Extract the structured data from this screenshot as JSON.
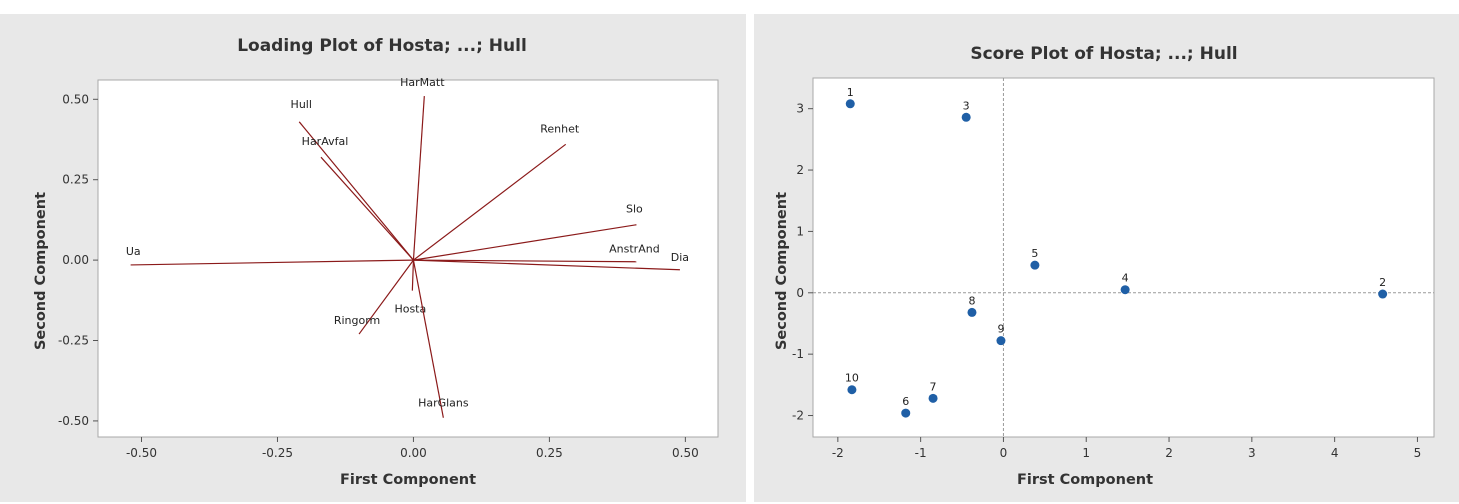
{
  "chart_data": [
    {
      "type": "vector",
      "title": "Loading Plot of Hosta; ...; Hull",
      "xlabel": "First Component",
      "ylabel": "Second Component",
      "xlim": [
        -0.58,
        0.56
      ],
      "ylim": [
        -0.55,
        0.56
      ],
      "xticks": [
        -0.5,
        -0.25,
        0.0,
        0.25,
        0.5
      ],
      "xtick_labels": [
        "-0.50",
        "-0.25",
        "0.00",
        "0.25",
        "0.50"
      ],
      "yticks": [
        -0.5,
        -0.25,
        0.0,
        0.25,
        0.5
      ],
      "ytick_labels": [
        "-0.50",
        "-0.25",
        "0.00",
        "0.25",
        "0.50"
      ],
      "line_color": "#8b1a1a",
      "vectors": [
        {
          "label": "Hosta",
          "x": -0.002,
          "y": -0.095
        },
        {
          "label": "Ua",
          "x": -0.52,
          "y": -0.015
        },
        {
          "label": "Hull",
          "x": -0.21,
          "y": 0.43
        },
        {
          "label": "HarAvfal",
          "x": -0.17,
          "y": 0.32
        },
        {
          "label": "HarMatt",
          "x": 0.02,
          "y": 0.51
        },
        {
          "label": "Renhet",
          "x": 0.28,
          "y": 0.36
        },
        {
          "label": "Slo",
          "x": 0.41,
          "y": 0.11
        },
        {
          "label": "AnstrAnd",
          "x": 0.41,
          "y": -0.005
        },
        {
          "label": "Dia",
          "x": 0.49,
          "y": -0.03
        },
        {
          "label": "Ringorm",
          "x": -0.1,
          "y": -0.23
        },
        {
          "label": "HarGlans",
          "x": 0.055,
          "y": -0.49
        }
      ]
    },
    {
      "type": "scatter",
      "title": "Score Plot of Hosta; ...; Hull",
      "xlabel": "First Component",
      "ylabel": "Second Component",
      "xlim": [
        -2.3,
        5.2
      ],
      "ylim": [
        -2.35,
        3.5
      ],
      "xticks": [
        -2,
        -1,
        0,
        1,
        2,
        3,
        4,
        5
      ],
      "xtick_labels": [
        "-2",
        "-1",
        "0",
        "1",
        "2",
        "3",
        "4",
        "5"
      ],
      "yticks": [
        -2,
        -1,
        0,
        1,
        2,
        3
      ],
      "ytick_labels": [
        "-2",
        "-1",
        "0",
        "1",
        "2",
        "3"
      ],
      "reference_lines": {
        "x": 0,
        "y": 0
      },
      "marker_color": "#1f5fa6",
      "points": [
        {
          "label": "1",
          "x": -1.85,
          "y": 3.08
        },
        {
          "label": "2",
          "x": 4.58,
          "y": -0.02
        },
        {
          "label": "3",
          "x": -0.45,
          "y": 2.86
        },
        {
          "label": "4",
          "x": 1.47,
          "y": 0.05
        },
        {
          "label": "5",
          "x": 0.38,
          "y": 0.45
        },
        {
          "label": "6",
          "x": -1.18,
          "y": -1.96
        },
        {
          "label": "7",
          "x": -0.85,
          "y": -1.72
        },
        {
          "label": "8",
          "x": -0.38,
          "y": -0.32
        },
        {
          "label": "9",
          "x": -0.03,
          "y": -0.78
        },
        {
          "label": "10",
          "x": -1.83,
          "y": -1.58
        }
      ]
    }
  ]
}
